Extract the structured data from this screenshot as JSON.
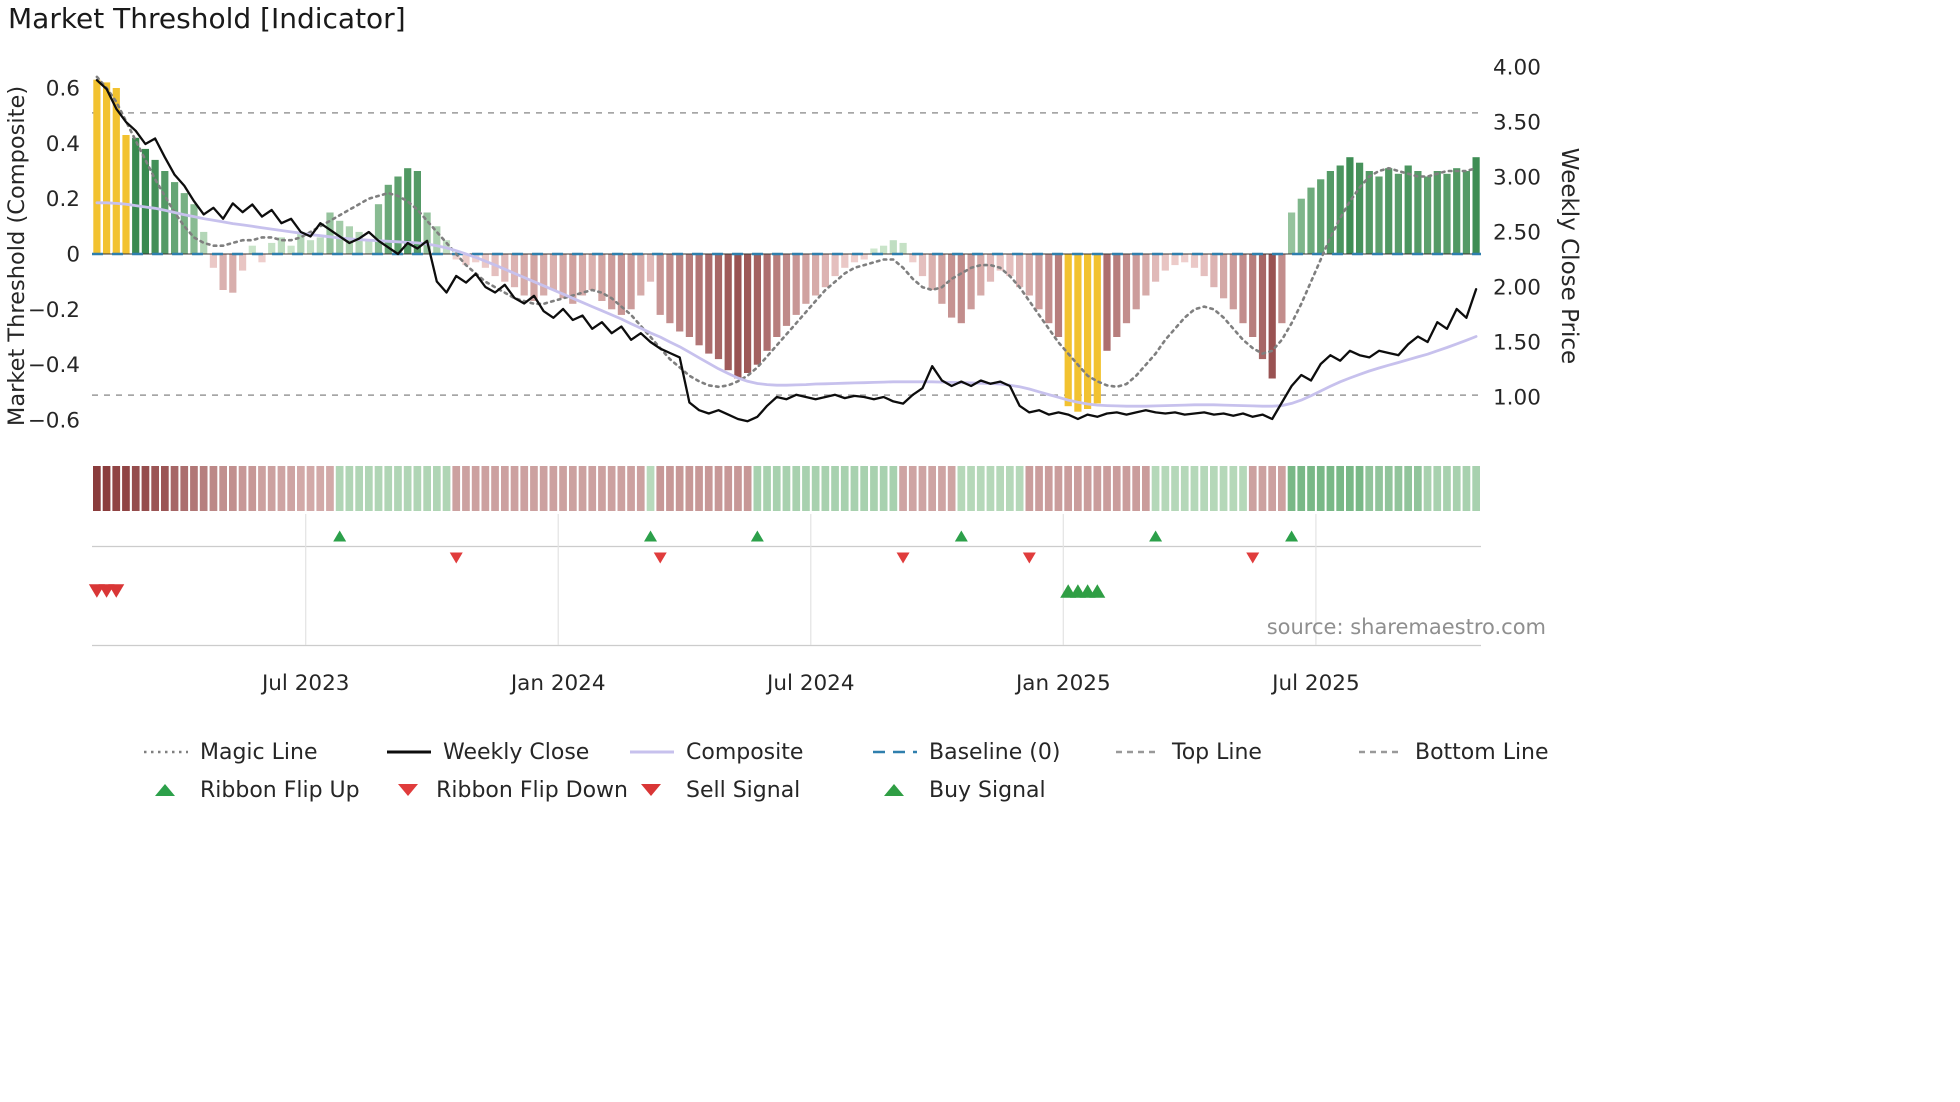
{
  "page": {
    "title": "Market Threshold [Indicator]",
    "source": "source: sharemaestro.com"
  },
  "axes": {
    "left_label": "Market Threshold (Composite)",
    "right_label": "Weekly Close Price",
    "left_tick_labels": [
      "0.6",
      "0.4",
      "0.2",
      "0",
      "−0.2",
      "−0.4",
      "−0.6"
    ],
    "left_tick_values": [
      0.6,
      0.4,
      0.2,
      0,
      -0.2,
      -0.4,
      -0.6
    ],
    "right_tick_labels": [
      "4.00",
      "3.50",
      "3.00",
      "2.50",
      "2.00",
      "1.50",
      "1.00"
    ],
    "right_tick_values": [
      4.0,
      3.5,
      3.0,
      2.5,
      2.0,
      1.5,
      1.0
    ],
    "x_tick_labels": [
      "Jul 2023",
      "Jan 2024",
      "Jul 2024",
      "Jan 2025",
      "Jul 2025"
    ],
    "x_tick_week_indices": [
      21.5,
      47.5,
      73.5,
      99.5,
      125.5
    ]
  },
  "colors": {
    "magic_line": "#7f7f7f",
    "weekly_close": "#0d0d0d",
    "composite": "#c7c1ed",
    "baseline": "#2f7fad",
    "ref_line": "#999999",
    "signal_yellow": "#f2c230",
    "green_light": "#d6ecd4",
    "green_dark": "#3a8a50",
    "red_light": "#f4d7d5",
    "red_dark": "#8f4343",
    "flip_up": "#2ca04a",
    "flip_down": "#e03c3c",
    "sell": "#d93636",
    "buy": "#2f9e44",
    "panel_line": "#cccccc",
    "panel_grid": "#e3e3e3"
  },
  "chart_data": {
    "type": "mixed",
    "n_weeks": 143,
    "reference_lines": {
      "baseline": 0,
      "top_line": 0.51,
      "bottom_line": -0.51
    },
    "histogram": {
      "name": "Market Threshold (Composite) histogram",
      "axis": "left",
      "signal_yellow_weeks": [
        0,
        1,
        2,
        3,
        100,
        101,
        102,
        103
      ],
      "values": [
        0.63,
        0.62,
        0.6,
        0.43,
        0.42,
        0.38,
        0.34,
        0.3,
        0.26,
        0.22,
        0.18,
        0.08,
        -0.05,
        -0.13,
        -0.14,
        -0.06,
        0.03,
        -0.03,
        0.04,
        0.06,
        0.03,
        0.08,
        0.05,
        0.06,
        0.15,
        0.12,
        0.1,
        0.08,
        0.05,
        0.18,
        0.25,
        0.28,
        0.31,
        0.3,
        0.15,
        0.1,
        0.05,
        -0.02,
        -0.04,
        -0.03,
        -0.05,
        -0.08,
        -0.1,
        -0.12,
        -0.15,
        -0.17,
        -0.15,
        -0.13,
        -0.16,
        -0.18,
        -0.15,
        -0.13,
        -0.17,
        -0.2,
        -0.22,
        -0.2,
        -0.15,
        -0.1,
        -0.22,
        -0.25,
        -0.28,
        -0.3,
        -0.33,
        -0.36,
        -0.38,
        -0.42,
        -0.45,
        -0.43,
        -0.4,
        -0.35,
        -0.3,
        -0.26,
        -0.22,
        -0.18,
        -0.15,
        -0.12,
        -0.08,
        -0.05,
        -0.03,
        -0.02,
        0.02,
        0.03,
        0.05,
        0.04,
        -0.03,
        -0.08,
        -0.13,
        -0.18,
        -0.23,
        -0.25,
        -0.2,
        -0.15,
        -0.1,
        -0.06,
        -0.08,
        -0.12,
        -0.15,
        -0.2,
        -0.25,
        -0.3,
        -0.55,
        -0.57,
        -0.56,
        -0.54,
        -0.35,
        -0.3,
        -0.25,
        -0.2,
        -0.15,
        -0.1,
        -0.06,
        -0.04,
        -0.03,
        -0.05,
        -0.08,
        -0.12,
        -0.16,
        -0.2,
        -0.25,
        -0.3,
        -0.38,
        -0.45,
        -0.25,
        0.15,
        0.2,
        0.24,
        0.27,
        0.3,
        0.32,
        0.35,
        0.33,
        0.3,
        0.28,
        0.31,
        0.29,
        0.32,
        0.3,
        0.28,
        0.3,
        0.29,
        0.31,
        0.3,
        0.35
      ]
    },
    "series": [
      {
        "name": "Magic Line",
        "axis": "left",
        "style": "dotted",
        "values": [
          0.64,
          0.6,
          0.55,
          0.48,
          0.41,
          0.34,
          0.27,
          0.21,
          0.15,
          0.1,
          0.06,
          0.04,
          0.03,
          0.03,
          0.04,
          0.05,
          0.05,
          0.06,
          0.06,
          0.05,
          0.05,
          0.06,
          0.08,
          0.1,
          0.12,
          0.14,
          0.16,
          0.18,
          0.2,
          0.21,
          0.22,
          0.21,
          0.19,
          0.16,
          0.12,
          0.08,
          0.04,
          0.0,
          -0.04,
          -0.07,
          -0.1,
          -0.12,
          -0.14,
          -0.16,
          -0.17,
          -0.18,
          -0.18,
          -0.17,
          -0.16,
          -0.15,
          -0.14,
          -0.13,
          -0.14,
          -0.16,
          -0.19,
          -0.22,
          -0.26,
          -0.3,
          -0.34,
          -0.38,
          -0.41,
          -0.44,
          -0.46,
          -0.475,
          -0.48,
          -0.475,
          -0.46,
          -0.44,
          -0.41,
          -0.37,
          -0.33,
          -0.29,
          -0.25,
          -0.21,
          -0.17,
          -0.13,
          -0.1,
          -0.07,
          -0.05,
          -0.04,
          -0.03,
          -0.02,
          -0.02,
          -0.05,
          -0.09,
          -0.12,
          -0.13,
          -0.12,
          -0.09,
          -0.07,
          -0.05,
          -0.04,
          -0.04,
          -0.05,
          -0.08,
          -0.12,
          -0.17,
          -0.22,
          -0.27,
          -0.32,
          -0.36,
          -0.4,
          -0.44,
          -0.46,
          -0.475,
          -0.48,
          -0.47,
          -0.44,
          -0.4,
          -0.36,
          -0.31,
          -0.27,
          -0.23,
          -0.2,
          -0.19,
          -0.2,
          -0.23,
          -0.27,
          -0.31,
          -0.34,
          -0.36,
          -0.35,
          -0.31,
          -0.25,
          -0.18,
          -0.1,
          -0.02,
          0.06,
          0.13,
          0.19,
          0.24,
          0.28,
          0.3,
          0.31,
          0.3,
          0.29,
          0.28,
          0.28,
          0.29,
          0.3,
          0.3,
          0.3,
          0.31
        ]
      },
      {
        "name": "Weekly Close",
        "axis": "right",
        "style": "solid",
        "values": [
          3.88,
          3.8,
          3.62,
          3.5,
          3.42,
          3.3,
          3.35,
          3.18,
          3.02,
          2.92,
          2.78,
          2.66,
          2.72,
          2.62,
          2.76,
          2.68,
          2.75,
          2.64,
          2.7,
          2.58,
          2.62,
          2.5,
          2.46,
          2.58,
          2.52,
          2.46,
          2.4,
          2.44,
          2.5,
          2.42,
          2.36,
          2.3,
          2.4,
          2.35,
          2.42,
          2.05,
          1.95,
          2.1,
          2.04,
          2.12,
          2.0,
          1.95,
          2.02,
          1.9,
          1.85,
          1.92,
          1.78,
          1.72,
          1.8,
          1.7,
          1.74,
          1.62,
          1.68,
          1.58,
          1.64,
          1.52,
          1.58,
          1.5,
          1.44,
          1.4,
          1.36,
          0.95,
          0.88,
          0.85,
          0.88,
          0.84,
          0.8,
          0.78,
          0.82,
          0.92,
          1.0,
          0.98,
          1.02,
          1.0,
          0.98,
          1.0,
          1.02,
          0.99,
          1.01,
          1.0,
          0.98,
          1.0,
          0.96,
          0.94,
          1.02,
          1.08,
          1.28,
          1.15,
          1.1,
          1.14,
          1.1,
          1.15,
          1.12,
          1.14,
          1.1,
          0.92,
          0.86,
          0.88,
          0.84,
          0.86,
          0.84,
          0.8,
          0.84,
          0.82,
          0.85,
          0.86,
          0.84,
          0.86,
          0.88,
          0.86,
          0.85,
          0.86,
          0.84,
          0.85,
          0.86,
          0.84,
          0.85,
          0.83,
          0.85,
          0.82,
          0.84,
          0.8,
          0.95,
          1.1,
          1.2,
          1.15,
          1.3,
          1.38,
          1.33,
          1.42,
          1.38,
          1.36,
          1.42,
          1.4,
          1.38,
          1.48,
          1.55,
          1.5,
          1.68,
          1.62,
          1.8,
          1.72,
          1.98
        ]
      },
      {
        "name": "Composite",
        "axis": "left",
        "style": "solid",
        "values": [
          0.185,
          0.185,
          0.183,
          0.18,
          0.175,
          0.17,
          0.165,
          0.158,
          0.15,
          0.142,
          0.135,
          0.128,
          0.122,
          0.116,
          0.11,
          0.105,
          0.1,
          0.095,
          0.09,
          0.085,
          0.08,
          0.075,
          0.07,
          0.066,
          0.062,
          0.058,
          0.055,
          0.052,
          0.05,
          0.048,
          0.046,
          0.044,
          0.042,
          0.04,
          0.036,
          0.03,
          0.022,
          0.012,
          0.0,
          -0.012,
          -0.026,
          -0.04,
          -0.055,
          -0.07,
          -0.085,
          -0.1,
          -0.115,
          -0.13,
          -0.145,
          -0.16,
          -0.175,
          -0.19,
          -0.205,
          -0.22,
          -0.235,
          -0.252,
          -0.268,
          -0.285,
          -0.3,
          -0.318,
          -0.335,
          -0.355,
          -0.375,
          -0.395,
          -0.415,
          -0.432,
          -0.448,
          -0.46,
          -0.468,
          -0.472,
          -0.474,
          -0.474,
          -0.473,
          -0.472,
          -0.47,
          -0.469,
          -0.468,
          -0.467,
          -0.466,
          -0.465,
          -0.464,
          -0.463,
          -0.462,
          -0.462,
          -0.462,
          -0.462,
          -0.462,
          -0.463,
          -0.464,
          -0.465,
          -0.466,
          -0.467,
          -0.468,
          -0.47,
          -0.474,
          -0.48,
          -0.488,
          -0.498,
          -0.508,
          -0.518,
          -0.528,
          -0.536,
          -0.542,
          -0.546,
          -0.548,
          -0.549,
          -0.55,
          -0.55,
          -0.55,
          -0.549,
          -0.548,
          -0.547,
          -0.546,
          -0.545,
          -0.545,
          -0.545,
          -0.546,
          -0.547,
          -0.548,
          -0.549,
          -0.55,
          -0.55,
          -0.548,
          -0.54,
          -0.528,
          -0.512,
          -0.495,
          -0.478,
          -0.462,
          -0.448,
          -0.435,
          -0.423,
          -0.412,
          -0.402,
          -0.392,
          -0.382,
          -0.372,
          -0.362,
          -0.35,
          -0.338,
          -0.325,
          -0.312,
          -0.298
        ]
      }
    ],
    "ribbon": {
      "values": [
        -1.0,
        -1.0,
        -0.95,
        -0.95,
        -0.9,
        -0.9,
        -0.85,
        -0.85,
        -0.75,
        -0.7,
        -0.65,
        -0.6,
        -0.55,
        -0.5,
        -0.5,
        -0.45,
        -0.45,
        -0.4,
        -0.4,
        -0.38,
        -0.38,
        -0.35,
        -0.35,
        -0.35,
        -0.35,
        0.35,
        0.35,
        0.35,
        0.35,
        0.35,
        0.35,
        0.35,
        0.35,
        0.35,
        0.35,
        0.35,
        0.35,
        -0.4,
        -0.4,
        -0.4,
        -0.4,
        -0.4,
        -0.4,
        -0.4,
        -0.4,
        -0.4,
        -0.4,
        -0.4,
        -0.4,
        -0.4,
        -0.4,
        -0.4,
        -0.4,
        -0.4,
        -0.4,
        -0.4,
        -0.4,
        0.3,
        -0.45,
        -0.45,
        -0.45,
        -0.45,
        -0.45,
        -0.45,
        -0.45,
        -0.45,
        -0.45,
        -0.45,
        0.4,
        0.4,
        0.4,
        0.4,
        0.4,
        0.4,
        0.4,
        0.4,
        0.4,
        0.4,
        0.4,
        0.4,
        0.4,
        0.4,
        0.4,
        -0.38,
        -0.38,
        -0.38,
        -0.38,
        -0.38,
        -0.38,
        0.32,
        0.32,
        0.32,
        0.32,
        0.32,
        0.32,
        0.32,
        -0.42,
        -0.42,
        -0.42,
        -0.42,
        -0.42,
        -0.42,
        -0.42,
        -0.42,
        -0.42,
        -0.42,
        -0.42,
        -0.42,
        -0.42,
        0.32,
        0.32,
        0.32,
        0.32,
        0.32,
        0.32,
        0.32,
        0.32,
        0.32,
        0.32,
        -0.4,
        -0.4,
        -0.4,
        -0.4,
        0.7,
        0.7,
        0.7,
        0.7,
        0.7,
        0.7,
        0.7,
        0.7,
        0.55,
        0.55,
        0.55,
        0.55,
        0.55,
        0.55,
        0.4,
        0.4,
        0.4,
        0.4,
        0.4,
        0.4
      ]
    },
    "signals": {
      "ribbon_flip_up_weeks": [
        25,
        57,
        68,
        89,
        109,
        123
      ],
      "ribbon_flip_down_weeks": [
        37,
        58,
        83,
        96,
        119
      ],
      "sell_signal_weeks": [
        0,
        1,
        2
      ],
      "buy_signal_weeks": [
        100,
        101,
        102,
        103
      ]
    }
  },
  "legend": {
    "rows": [
      [
        {
          "id": "magic-line",
          "label": "Magic Line",
          "swatch": "dotted",
          "color": "#7f7f7f"
        },
        {
          "id": "weekly-close",
          "label": "Weekly Close",
          "swatch": "solid",
          "color": "#0d0d0d"
        },
        {
          "id": "composite",
          "label": "Composite",
          "swatch": "solid",
          "color": "#c7c1ed"
        },
        {
          "id": "baseline",
          "label": "Baseline (0)",
          "swatch": "dashed-long",
          "color": "#2f7fad"
        },
        {
          "id": "top-line",
          "label": "Top Line",
          "swatch": "dashed",
          "color": "#999999"
        },
        {
          "id": "bottom-line",
          "label": "Bottom Line",
          "swatch": "dashed",
          "color": "#999999"
        }
      ],
      [
        {
          "id": "ribbon-flip-up",
          "label": "Ribbon Flip Up",
          "swatch": "tri-up",
          "color": "#2ca04a"
        },
        {
          "id": "ribbon-flip-down",
          "label": "Ribbon Flip Down",
          "swatch": "tri-down",
          "color": "#e03c3c"
        },
        {
          "id": "sell-signal",
          "label": "Sell Signal",
          "swatch": "tri-down",
          "color": "#d93636"
        },
        {
          "id": "buy-signal",
          "label": "Buy Signal",
          "swatch": "tri-up",
          "color": "#2f9e44"
        }
      ]
    ]
  }
}
